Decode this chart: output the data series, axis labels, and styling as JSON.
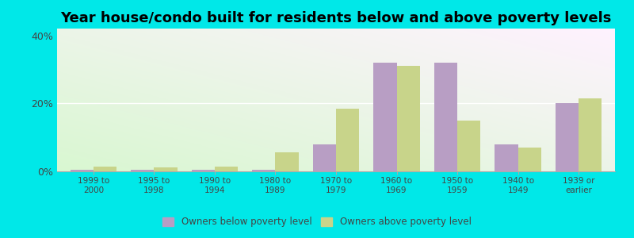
{
  "title": "Year house/condo built for residents below and above poverty levels",
  "categories": [
    "1999 to\n2000",
    "1995 to\n1998",
    "1990 to\n1994",
    "1980 to\n1989",
    "1970 to\n1979",
    "1960 to\n1969",
    "1950 to\n1959",
    "1940 to\n1949",
    "1939 or\nearlier"
  ],
  "below_poverty": [
    0.5,
    0.5,
    0.5,
    0.5,
    8.0,
    32.0,
    32.0,
    8.0,
    20.0
  ],
  "above_poverty": [
    1.5,
    1.2,
    1.5,
    5.5,
    18.5,
    31.0,
    15.0,
    7.0,
    21.5
  ],
  "below_color": "#b89ec4",
  "above_color": "#c8d48a",
  "outer_background": "#00e8e8",
  "ylim": [
    0,
    42
  ],
  "yticks": [
    0,
    20,
    40
  ],
  "ytick_labels": [
    "0%",
    "20%",
    "40%"
  ],
  "legend_below": "Owners below poverty level",
  "legend_above": "Owners above poverty level",
  "title_fontsize": 13,
  "bar_width": 0.38
}
